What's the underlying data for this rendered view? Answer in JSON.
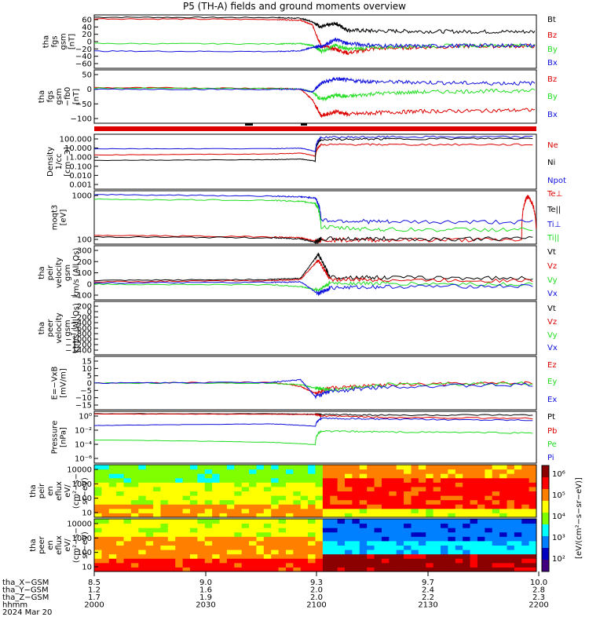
{
  "title": "P5 (TH-A) fields and ground moments overview",
  "colors": {
    "black": "#000000",
    "red": "#dd0000",
    "green": "#22dd22",
    "blue": "#1010dd"
  },
  "chart_data": [
    {
      "type": "line",
      "ylabel": [
        "tha",
        "fgs",
        "gsm",
        "[nT]"
      ],
      "yticks": [
        "60",
        "40",
        "20",
        "0",
        "−20",
        "−40",
        "−60"
      ],
      "ylim": [
        -70,
        70
      ],
      "legend": [
        "Bt",
        "Bz",
        "By",
        "Bx"
      ],
      "legend_colors": [
        "black",
        "red",
        "green",
        "blue"
      ],
      "series": [
        {
          "name": "Bt",
          "color": "black",
          "x": [
            8.5,
            9.12,
            9.2,
            9.24,
            9.27,
            9.32,
            9.36,
            9.45,
            9.6,
            9.8,
            10.0
          ],
          "y": [
            64,
            63,
            61,
            52,
            38,
            48,
            30,
            28,
            27,
            26,
            26
          ]
        },
        {
          "name": "Bz",
          "color": "red",
          "x": [
            8.5,
            9.12,
            9.2,
            9.24,
            9.27,
            9.32,
            9.36,
            9.45,
            9.6,
            9.8,
            10.0
          ],
          "y": [
            60,
            58,
            56,
            44,
            -12,
            -20,
            -30,
            -18,
            -15,
            -12,
            -12
          ]
        },
        {
          "name": "By",
          "color": "green",
          "x": [
            8.5,
            9.12,
            9.2,
            9.24,
            9.27,
            9.32,
            9.36,
            9.45,
            9.6,
            9.8,
            10.0
          ],
          "y": [
            -5,
            -6,
            -5,
            -10,
            -25,
            -10,
            -20,
            -15,
            -12,
            -10,
            -10
          ]
        },
        {
          "name": "Bx",
          "color": "blue",
          "x": [
            8.5,
            9.12,
            9.2,
            9.24,
            9.27,
            9.32,
            9.36,
            9.45,
            9.6,
            9.8,
            10.0
          ],
          "y": [
            -25,
            -26,
            -24,
            -15,
            -12,
            5,
            -5,
            -10,
            -12,
            -10,
            -10
          ]
        }
      ]
    },
    {
      "type": "line",
      "ylabel": [
        "tha",
        "fgs",
        "gsm",
        "−fb0",
        "[nT]"
      ],
      "yticks": [
        "50",
        "0",
        "−50",
        "−100"
      ],
      "ylim": [
        -120,
        60
      ],
      "legend": [
        "Bz",
        "By",
        "Bx"
      ],
      "legend_colors": [
        "red",
        "green",
        "blue"
      ],
      "series": [
        {
          "name": "Bz",
          "color": "red",
          "x": [
            8.5,
            9.12,
            9.2,
            9.24,
            9.27,
            9.32,
            9.36,
            9.45,
            9.6,
            9.8,
            10.0
          ],
          "y": [
            0,
            -2,
            -5,
            -40,
            -95,
            -80,
            -90,
            -85,
            -80,
            -78,
            -75
          ]
        },
        {
          "name": "By",
          "color": "green",
          "x": [
            8.5,
            9.12,
            9.2,
            9.24,
            9.27,
            9.32,
            9.36,
            9.45,
            9.6,
            9.8,
            10.0
          ],
          "y": [
            -2,
            -3,
            -5,
            -15,
            -40,
            -25,
            -30,
            -20,
            -15,
            -12,
            -10
          ]
        },
        {
          "name": "Bx",
          "color": "blue",
          "x": [
            8.5,
            9.12,
            9.2,
            9.24,
            9.27,
            9.32,
            9.36,
            9.45,
            9.6,
            9.8,
            10.0
          ],
          "y": [
            -5,
            -6,
            -5,
            -15,
            15,
            30,
            25,
            20,
            18,
            15,
            15
          ]
        }
      ]
    },
    {
      "type": "line",
      "ylabel": [
        "Density",
        "1/cc",
        "[cm−3]"
      ],
      "yticks": [
        "100.000",
        "10.000",
        "1.000",
        "0.100",
        "0.010",
        "0.001"
      ],
      "ylim": [
        0.001,
        200
      ],
      "log": true,
      "legend": [
        "Ne",
        "Ni",
        "Npot"
      ],
      "legend_colors": [
        "red",
        "black",
        "blue"
      ],
      "series": [
        {
          "name": "Ne",
          "color": "red",
          "x": [
            8.5,
            9.1,
            9.2,
            9.25,
            9.27,
            9.5,
            10.0
          ],
          "y": [
            2,
            2.5,
            3,
            1.5,
            20,
            20,
            20
          ]
        },
        {
          "name": "Ni",
          "color": "black",
          "x": [
            8.5,
            9.1,
            9.2,
            9.25,
            9.27,
            9.5,
            10.0
          ],
          "y": [
            0.6,
            0.7,
            0.8,
            0.5,
            60,
            70,
            80
          ]
        },
        {
          "name": "Npot",
          "color": "blue",
          "x": [
            8.5,
            9.1,
            9.2,
            9.25,
            9.27,
            9.5,
            10.0
          ],
          "y": [
            8,
            8,
            9,
            4,
            100,
            110,
            110
          ]
        }
      ]
    },
    {
      "type": "line",
      "ylabel": [
        "moqt3",
        "[eV]"
      ],
      "yticks": [
        "1000",
        "100"
      ],
      "ylim": [
        30,
        5000
      ],
      "log": true,
      "legend": [
        "Te⊥",
        "Te||",
        "Ti⊥",
        "Ti||"
      ],
      "legend_colors": [
        "red",
        "black",
        "blue",
        "green"
      ],
      "series": [
        {
          "name": "Te⊥",
          "color": "red",
          "x": [
            8.5,
            9.1,
            9.2,
            9.25,
            9.27,
            9.5,
            9.95,
            9.97,
            10.0
          ],
          "y": [
            70,
            60,
            55,
            40,
            45,
            45,
            45,
            3000,
            45
          ]
        },
        {
          "name": "Te||",
          "color": "black",
          "x": [
            8.5,
            9.1,
            9.2,
            9.25,
            9.27,
            9.5,
            10.0
          ],
          "y": [
            60,
            55,
            50,
            35,
            50,
            50,
            50
          ]
        },
        {
          "name": "Ti⊥",
          "color": "blue",
          "x": [
            8.5,
            9.1,
            9.2,
            9.25,
            9.27,
            9.5,
            10.0
          ],
          "y": [
            3500,
            3000,
            2800,
            2500,
            300,
            250,
            250
          ]
        },
        {
          "name": "Ti||",
          "color": "green",
          "x": [
            8.5,
            9.1,
            9.2,
            9.25,
            9.27,
            9.5,
            10.0
          ],
          "y": [
            2200,
            2000,
            1800,
            1500,
            150,
            120,
            120
          ]
        }
      ]
    },
    {
      "type": "line",
      "ylabel": [
        "tha",
        "peir",
        "velocity",
        "gsm",
        "km/s (All Qs)"
      ],
      "yticks": [
        "300",
        "200",
        "100",
        "0",
        "−100"
      ],
      "ylim": [
        -130,
        320
      ],
      "legend": [
        "Vt",
        "Vz",
        "Vy",
        "Vx"
      ],
      "legend_colors": [
        "black",
        "red",
        "green",
        "blue"
      ],
      "series": [
        {
          "name": "Vt",
          "color": "black",
          "x": [
            8.5,
            9.1,
            9.2,
            9.26,
            9.3,
            9.5,
            10.0
          ],
          "y": [
            30,
            40,
            50,
            250,
            60,
            55,
            50
          ]
        },
        {
          "name": "Vz",
          "color": "red",
          "x": [
            8.5,
            9.1,
            9.2,
            9.26,
            9.3,
            9.5,
            10.0
          ],
          "y": [
            20,
            30,
            40,
            200,
            40,
            35,
            30
          ]
        },
        {
          "name": "Vy",
          "color": "green",
          "x": [
            8.5,
            9.1,
            9.2,
            9.26,
            9.3,
            9.5,
            10.0
          ],
          "y": [
            0,
            -5,
            -20,
            -50,
            10,
            5,
            0
          ]
        },
        {
          "name": "Vx",
          "color": "blue",
          "x": [
            8.5,
            9.1,
            9.2,
            9.26,
            9.3,
            9.5,
            10.0
          ],
          "y": [
            10,
            15,
            20,
            -80,
            -30,
            -20,
            -15
          ]
        }
      ]
    },
    {
      "type": "line",
      "ylabel": [
        "tha",
        "peer",
        "velocity",
        "gsm",
        "km/s (All Qs)"
      ],
      "yticks": [
        "200",
        "0",
        "−200",
        "−400",
        "−600",
        "−800",
        "−1000",
        "−1200",
        "−1400"
      ],
      "ylim": [
        -1500,
        300
      ],
      "legend": [
        "Vt",
        "Vz",
        "Vy",
        "Vx"
      ],
      "legend_colors": [
        "black",
        "red",
        "green",
        "blue"
      ],
      "series": []
    },
    {
      "type": "line",
      "ylabel": [
        "E=−VxB",
        "[mV/m]"
      ],
      "yticks": [
        "15",
        "10",
        "5",
        "0",
        "−5",
        "−10",
        "−15"
      ],
      "ylim": [
        -16,
        16
      ],
      "legend": [
        "Ez",
        "Ey",
        "Ex"
      ],
      "legend_colors": [
        "red",
        "green",
        "blue"
      ],
      "series": [
        {
          "name": "Ez",
          "color": "red",
          "x": [
            8.5,
            9.1,
            9.2,
            9.25,
            9.3,
            9.5,
            10.0
          ],
          "y": [
            0,
            0.5,
            -2,
            -6,
            -3,
            -1,
            0
          ]
        },
        {
          "name": "Ey",
          "color": "green",
          "x": [
            8.5,
            9.1,
            9.2,
            9.25,
            9.3,
            9.5,
            10.0
          ],
          "y": [
            0,
            0,
            -1,
            -3,
            -4,
            -1,
            0
          ]
        },
        {
          "name": "Ex",
          "color": "blue",
          "x": [
            8.5,
            9.1,
            9.2,
            9.25,
            9.3,
            9.5,
            10.0
          ],
          "y": [
            0,
            0.5,
            2,
            -8,
            -5,
            -2,
            -1
          ]
        }
      ]
    },
    {
      "type": "line",
      "ylabel": [
        "Pressure",
        "[nPa]"
      ],
      "yticks": [
        "10⁰",
        "10⁻²",
        "10⁻⁴",
        "10⁻⁶"
      ],
      "ylim": [
        1e-06,
        3
      ],
      "log": true,
      "legend": [
        "Pt",
        "Pb",
        "Pe",
        "Pi"
      ],
      "legend_colors": [
        "black",
        "red",
        "green",
        "blue"
      ],
      "series": [
        {
          "name": "Pt",
          "color": "black",
          "x": [
            8.5,
            9.1,
            9.25,
            9.27,
            9.5,
            10.0
          ],
          "y": [
            1.5,
            1.5,
            1.3,
            1.2,
            1.0,
            1.0
          ]
        },
        {
          "name": "Pb",
          "color": "red",
          "x": [
            8.5,
            9.1,
            9.25,
            9.27,
            9.5,
            10.0
          ],
          "y": [
            1.4,
            1.3,
            1.2,
            0.8,
            0.5,
            0.4
          ]
        },
        {
          "name": "Pe",
          "color": "green",
          "x": [
            8.5,
            9.1,
            9.25,
            9.27,
            9.5,
            10.0
          ],
          "y": [
            0.0008,
            0.0004,
            0.0002,
            0.01,
            0.008,
            0.006
          ]
        },
        {
          "name": "Pi",
          "color": "blue",
          "x": [
            8.5,
            9.1,
            9.25,
            9.27,
            9.5,
            10.0
          ],
          "y": [
            0.05,
            0.08,
            0.04,
            0.4,
            0.3,
            0.25
          ]
        }
      ]
    },
    {
      "type": "heatmap",
      "ylabel": [
        "tha",
        "peir",
        "en",
        "eflux",
        "eV/",
        "(cm²−s−",
        "sr−eV)"
      ],
      "yticks": [
        "10000",
        "1000",
        "100",
        "10"
      ],
      "ylim": [
        5,
        30000
      ],
      "log": true
    },
    {
      "type": "heatmap",
      "ylabel": [
        "tha",
        "peer",
        "en",
        "eflux",
        "eV/",
        "(cm²−s−",
        "sr−eV)"
      ],
      "yticks": [
        "10000",
        "1000",
        "100",
        "10"
      ],
      "ylim": [
        5,
        30000
      ],
      "log": true
    }
  ],
  "xaxis": {
    "xlim": [
      8.5,
      10.0
    ],
    "rows": [
      {
        "label": "tha_X−GSM",
        "values": [
          "8.5",
          "9.0",
          "9.3",
          "9.7",
          "10.0"
        ]
      },
      {
        "label": "tha_Y−GSM",
        "values": [
          "1.2",
          "1.6",
          "2.0",
          "2.4",
          "2.8"
        ]
      },
      {
        "label": "tha_Z−GSM",
        "values": [
          "1.7",
          "1.9",
          "2.0",
          "2.2",
          "2.3"
        ]
      },
      {
        "label": "hhmm",
        "values": [
          "2000",
          "2030",
          "2100",
          "2130",
          "2200"
        ]
      }
    ],
    "date": "2024 Mar 20"
  },
  "colorbar": {
    "ticks": [
      "10⁶",
      "10⁵",
      "10⁴",
      "10³",
      "10²"
    ],
    "label": "[eV/(cm²−s−sr−eV)]",
    "colors": [
      "#8b0000",
      "#ff0000",
      "#ff8000",
      "#ffff00",
      "#80ff00",
      "#00ffff",
      "#0080ff",
      "#0000c0",
      "#400080"
    ]
  }
}
